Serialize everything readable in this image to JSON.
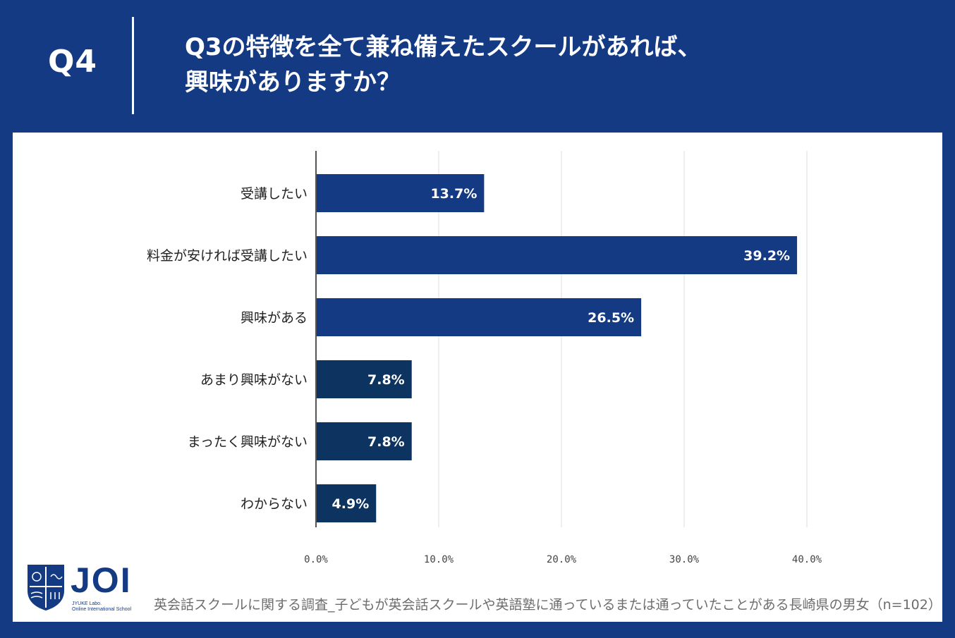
{
  "header": {
    "question_number": "Q4",
    "title_line1": "Q3の特徴を全て兼ね備えたスクールがあれば、",
    "title_line2": "興味がありますか？"
  },
  "chart_data": {
    "type": "bar",
    "orientation": "horizontal",
    "categories": [
      "受講したい",
      "料金が安ければ受講したい",
      "興味がある",
      "あまり興味がない",
      "まったく興味がない",
      "わからない"
    ],
    "values": [
      13.7,
      39.2,
      26.5,
      7.8,
      7.8,
      4.9
    ],
    "data_labels": [
      "13.7%",
      "39.2%",
      "26.5%",
      "7.8%",
      "7.8%",
      "4.9%"
    ],
    "bar_colors": [
      "#143a84",
      "#143a84",
      "#143a84",
      "#0d3360",
      "#0d3360",
      "#0d3360"
    ],
    "xlim": [
      0,
      40
    ],
    "xticks": [
      0,
      10,
      20,
      30,
      40
    ],
    "xtick_labels": [
      "0.0%",
      "10.0%",
      "20.0%",
      "30.0%",
      "40.0%"
    ],
    "grid": true,
    "title": "",
    "xlabel": "",
    "ylabel": ""
  },
  "logo": {
    "name": "JOI",
    "sub_line1": "JYUKE Labo.",
    "sub_line2": "Online International School",
    "color": "#143a84"
  },
  "footnote": "英会話スクールに関する調査_子どもが英会話スクールや英語塾に通っているまたは通っていたことがある長崎県の男女（n=102）",
  "colors": {
    "background": "#143a84",
    "panel": "#ffffff",
    "grid": "#dcdcdc"
  }
}
